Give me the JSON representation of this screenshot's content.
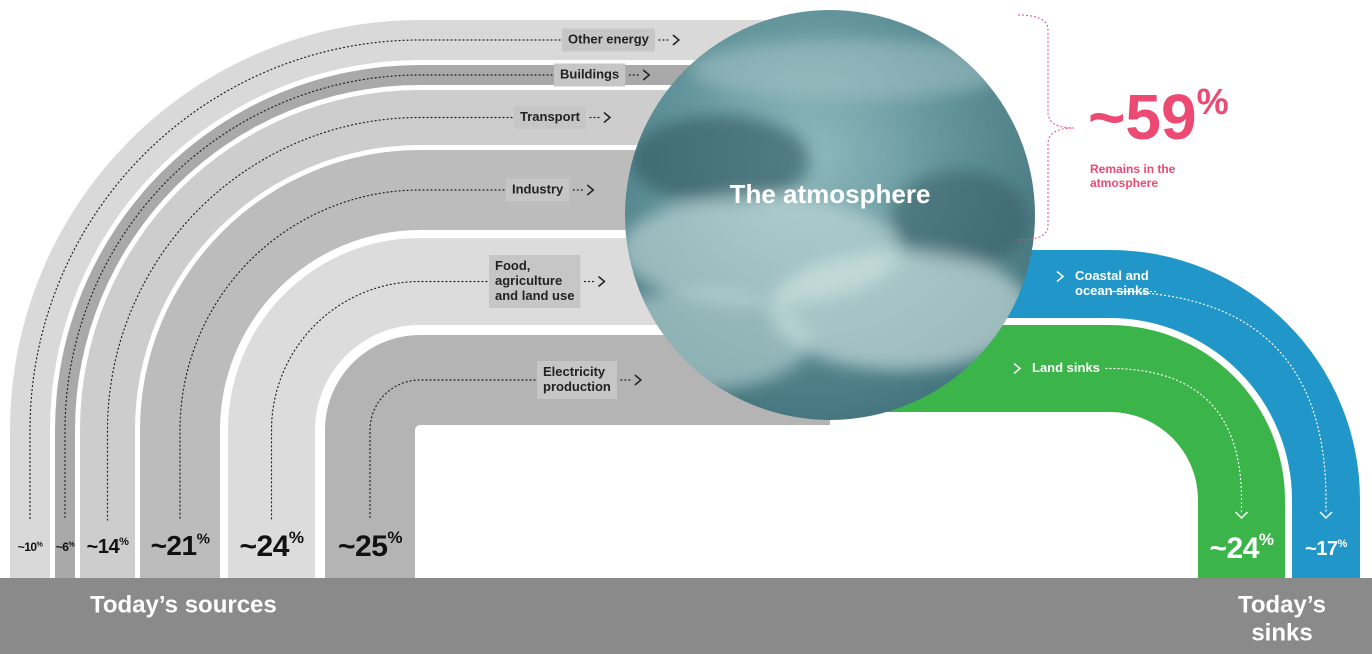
{
  "title": "The atmosphere",
  "remaining": {
    "value": "~59",
    "unit": "%",
    "caption": [
      "Remains in the",
      "atmosphere"
    ]
  },
  "sources": {
    "title": "Today’s sources",
    "items": [
      {
        "label": [
          "Other energy"
        ],
        "value": "~10",
        "unit": "%"
      },
      {
        "label": [
          "Buildings"
        ],
        "value": "~6",
        "unit": "%"
      },
      {
        "label": [
          "Transport"
        ],
        "value": "~14",
        "unit": "%"
      },
      {
        "label": [
          "Industry"
        ],
        "value": "~21",
        "unit": "%"
      },
      {
        "label": [
          "Food,",
          "agriculture",
          "and land use"
        ],
        "value": "~24",
        "unit": "%"
      },
      {
        "label": [
          "Electricity",
          "production"
        ],
        "value": "~25",
        "unit": "%"
      }
    ]
  },
  "sinks": {
    "title": [
      "Today’s",
      "sinks"
    ],
    "items": [
      {
        "label": [
          "Land sinks"
        ],
        "value": "~24",
        "unit": "%"
      },
      {
        "label": [
          "Coastal and",
          "ocean sinks"
        ],
        "value": "~17",
        "unit": "%"
      }
    ]
  }
}
